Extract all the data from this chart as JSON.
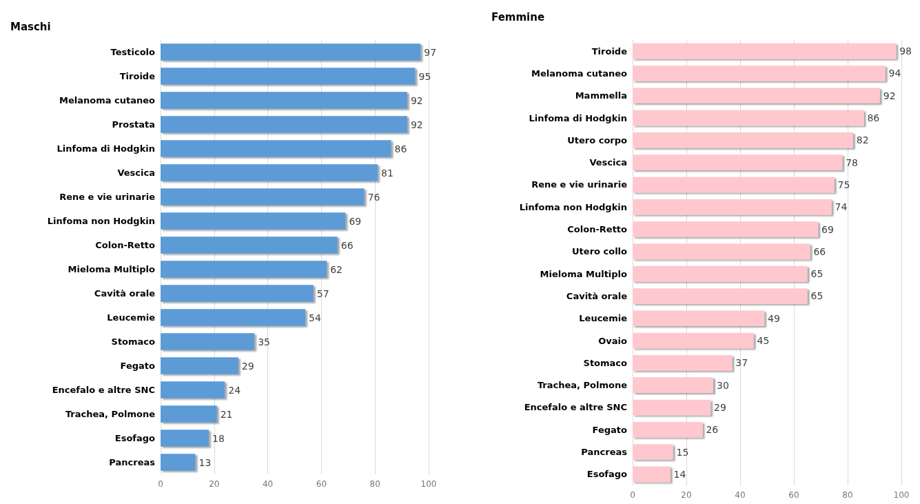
{
  "chart_data": [
    {
      "type": "bar",
      "orientation": "horizontal",
      "title": "Maschi",
      "categories": [
        "Testicolo",
        "Tiroide",
        "Melanoma cutaneo",
        "Prostata",
        "Linfoma di Hodgkin",
        "Vescica",
        "Rene e vie urinarie",
        "Linfoma non Hodgkin",
        "Colon-Retto",
        "Mieloma Multiplo",
        "Cavità orale",
        "Leucemie",
        "Stomaco",
        "Fegato",
        "Encefalo e altre SNC",
        "Trachea, Polmone",
        "Esofago",
        "Pancreas"
      ],
      "values": [
        97,
        95,
        92,
        92,
        86,
        81,
        76,
        69,
        66,
        62,
        57,
        54,
        35,
        29,
        24,
        21,
        18,
        13
      ],
      "color": "#5b9bd5",
      "xlim": [
        0,
        100
      ],
      "xticks": [
        0,
        20,
        40,
        60,
        80,
        100
      ],
      "grid": "x",
      "data_labels": true
    },
    {
      "type": "bar",
      "orientation": "horizontal",
      "title": "Femmine",
      "categories": [
        "Tiroide",
        "Melanoma cutaneo",
        "Mammella",
        "Linfoma di Hodgkin",
        "Utero corpo",
        "Vescica",
        "Rene e vie urinarie",
        "Linfoma non Hodgkin",
        "Colon-Retto",
        "Utero collo",
        "Mieloma Multiplo",
        "Cavità orale",
        "Leucemie",
        "Ovaio",
        "Stomaco",
        "Trachea, Polmone",
        "Encefalo e altre SNC",
        "Fegato",
        "Pancreas",
        "Esofago"
      ],
      "values": [
        98,
        94,
        92,
        86,
        82,
        78,
        75,
        74,
        69,
        66,
        65,
        65,
        49,
        45,
        37,
        30,
        29,
        26,
        15,
        14
      ],
      "color": "#ffc7ce",
      "xlim": [
        0,
        100
      ],
      "xticks": [
        0,
        20,
        40,
        60,
        80,
        100
      ],
      "grid": "x",
      "data_labels": true
    }
  ]
}
